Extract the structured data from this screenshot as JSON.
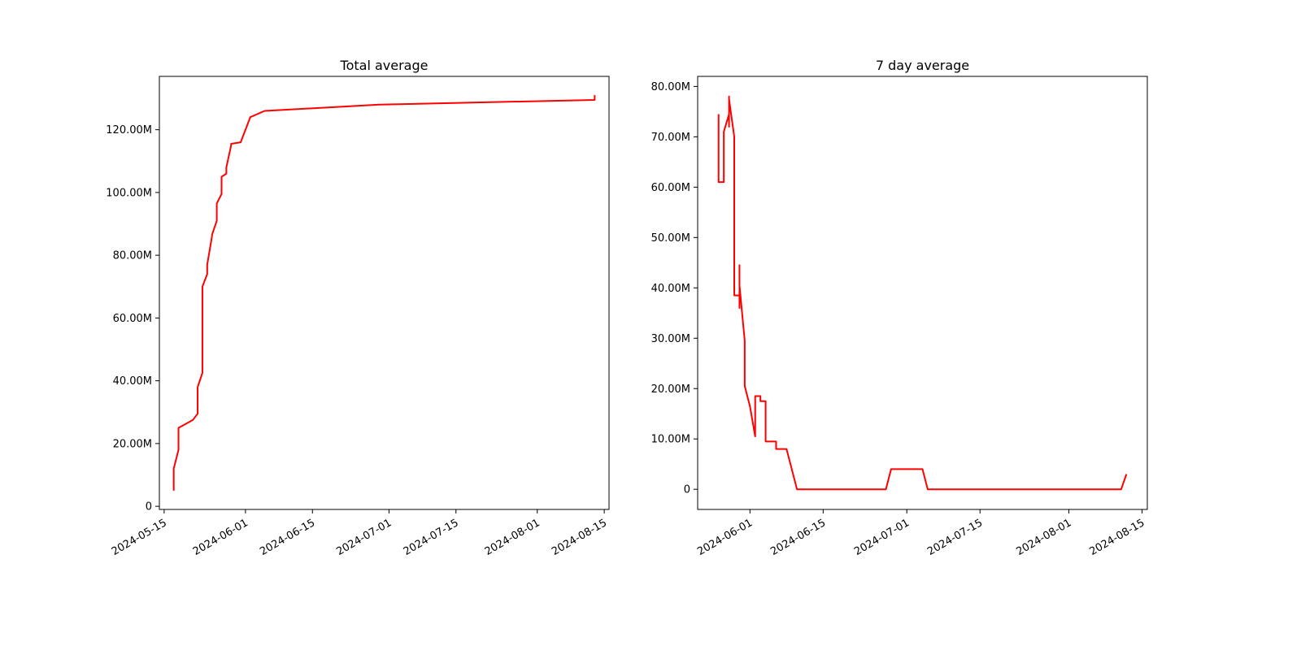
{
  "chart_data": [
    {
      "type": "line",
      "title": "Total average",
      "xlabel": "",
      "ylabel": "",
      "x_is_date": true,
      "xlim": [
        "2024-05-14",
        "2024-08-16"
      ],
      "ylim": [
        -1000000,
        137000000
      ],
      "x_ticks": [
        "2024-05-15",
        "2024-06-01",
        "2024-06-15",
        "2024-07-01",
        "2024-07-15",
        "2024-08-01",
        "2024-08-15"
      ],
      "y_ticks": [
        0,
        20000000,
        40000000,
        60000000,
        80000000,
        100000000,
        120000000
      ],
      "y_tick_labels": [
        "0",
        "20.00M",
        "40.00M",
        "60.00M",
        "80.00M",
        "100.00M",
        "120.00M"
      ],
      "grid": false,
      "series": [
        {
          "color": "#ff0000",
          "x": [
            "2024-05-17",
            "2024-05-17",
            "2024-05-18",
            "2024-05-18",
            "2024-05-21",
            "2024-05-22",
            "2024-05-22",
            "2024-05-22",
            "2024-05-23",
            "2024-05-23",
            "2024-05-23",
            "2024-05-23",
            "2024-05-24",
            "2024-05-24",
            "2024-05-25",
            "2024-05-25",
            "2024-05-26",
            "2024-05-26",
            "2024-05-26",
            "2024-05-27",
            "2024-05-27",
            "2024-05-27",
            "2024-05-28",
            "2024-05-28",
            "2024-05-29",
            "2024-05-29",
            "2024-05-31",
            "2024-06-02",
            "2024-06-05",
            "2024-06-29",
            "2024-08-13",
            "2024-08-13"
          ],
          "values": [
            5000000,
            12000000,
            18000000,
            25000000,
            27500000,
            29500000,
            35000000,
            38000000,
            42500000,
            45000000,
            68000000,
            70000000,
            74000000,
            77000000,
            86000000,
            86500000,
            91000000,
            96000000,
            96500000,
            99500000,
            102500000,
            105000000,
            106000000,
            108000000,
            115000000,
            115500000,
            116000000,
            124000000,
            126000000,
            128000000,
            129500000,
            131000000
          ]
        }
      ]
    },
    {
      "type": "line",
      "title": "7 day average",
      "xlabel": "",
      "ylabel": "",
      "x_is_date": true,
      "xlim": [
        "2024-05-22",
        "2024-08-16"
      ],
      "ylim": [
        -4000000,
        82000000
      ],
      "x_ticks": [
        "2024-06-01",
        "2024-06-15",
        "2024-07-01",
        "2024-07-15",
        "2024-08-01",
        "2024-08-15"
      ],
      "y_ticks": [
        0,
        10000000,
        20000000,
        30000000,
        40000000,
        50000000,
        60000000,
        70000000,
        80000000
      ],
      "y_tick_labels": [
        "0",
        "10.00M",
        "20.00M",
        "30.00M",
        "40.00M",
        "50.00M",
        "60.00M",
        "70.00M",
        "80.00M"
      ],
      "grid": false,
      "series": [
        {
          "color": "#ff0000",
          "x": [
            "2024-05-26",
            "2024-05-26",
            "2024-05-26",
            "2024-05-26",
            "2024-05-27",
            "2024-05-27",
            "2024-05-27",
            "2024-05-27",
            "2024-05-28",
            "2024-05-28",
            "2024-05-28",
            "2024-05-28",
            "2024-05-29",
            "2024-05-29",
            "2024-05-29",
            "2024-05-29",
            "2024-05-30",
            "2024-05-30",
            "2024-05-30",
            "2024-05-30",
            "2024-05-30",
            "2024-05-31",
            "2024-05-31",
            "2024-05-31",
            "2024-05-31",
            "2024-05-31",
            "2024-05-31",
            "2024-06-01",
            "2024-06-01",
            "2024-06-02",
            "2024-06-02",
            "2024-06-03",
            "2024-06-03",
            "2024-06-03",
            "2024-06-04",
            "2024-06-04",
            "2024-06-04",
            "2024-06-06",
            "2024-06-06",
            "2024-06-08",
            "2024-06-08",
            "2024-06-10",
            "2024-06-10",
            "2024-06-27",
            "2024-06-28",
            "2024-07-04",
            "2024-07-05",
            "2024-08-11",
            "2024-08-12",
            "2024-08-12"
          ],
          "values": [
            74500000,
            62500000,
            65500000,
            61000000,
            61000000,
            61500000,
            71000000,
            71000000,
            74500000,
            72000000,
            78000000,
            77500000,
            70000000,
            64000000,
            64000000,
            38500000,
            38500000,
            36000000,
            44500000,
            40500000,
            40500000,
            29500000,
            29500000,
            28500000,
            28500000,
            20500000,
            20500000,
            16500000,
            16500000,
            10500000,
            18500000,
            18500000,
            17500000,
            17500000,
            17500000,
            9500000,
            9500000,
            9500000,
            8000000,
            8000000,
            8000000,
            0,
            0,
            0,
            4000000,
            4000000,
            0,
            0,
            3000000,
            3000000
          ]
        }
      ]
    }
  ]
}
